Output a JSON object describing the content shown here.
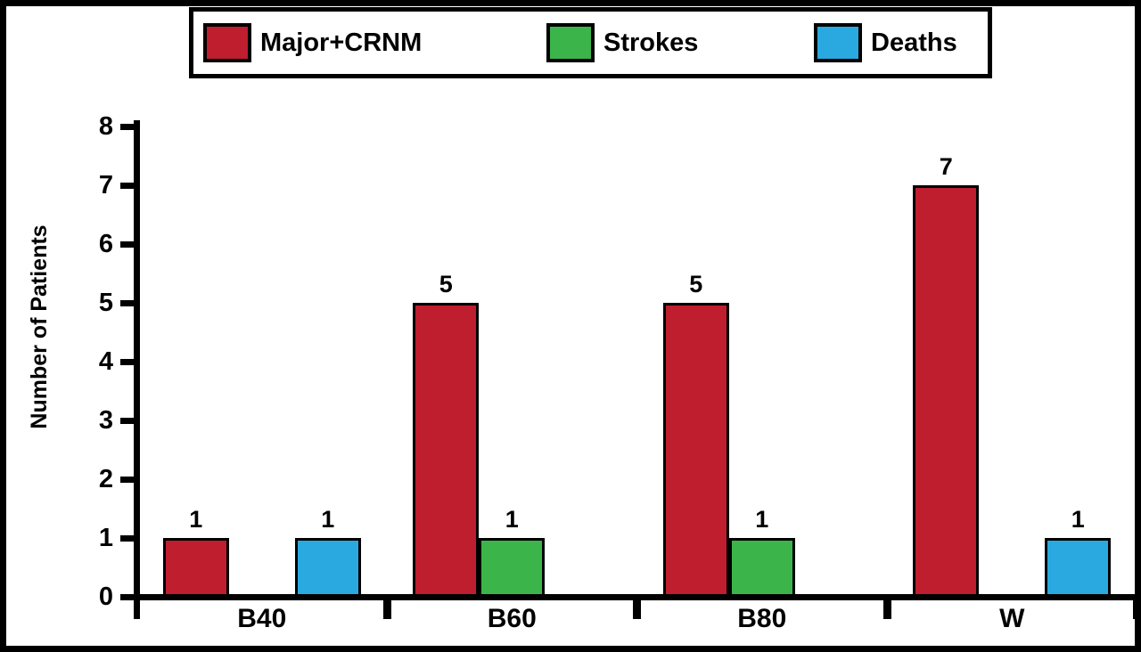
{
  "figure": {
    "background": "#ffffff",
    "border_color": "#000000"
  },
  "chart_data": {
    "type": "bar",
    "title": "",
    "xlabel": "",
    "ylabel": "Number of Patients",
    "categories": [
      "B40",
      "B60",
      "B80",
      "W"
    ],
    "series": [
      {
        "name": "Major+CRNM",
        "color": "#be1e2d",
        "values": [
          1,
          5,
          5,
          7
        ]
      },
      {
        "name": "Strokes",
        "color": "#3bb54a",
        "values": [
          null,
          1,
          1,
          null
        ]
      },
      {
        "name": "Deaths",
        "color": "#29a9e0",
        "values": [
          1,
          null,
          null,
          1
        ]
      }
    ],
    "ylim": [
      0,
      8
    ],
    "yticks": [
      0,
      1,
      2,
      3,
      4,
      5,
      6,
      7,
      8
    ],
    "bar_value_labels": [
      "1",
      "5",
      "5",
      "7",
      "1",
      "1",
      "1",
      "1"
    ],
    "grid": false,
    "legend_position": "top"
  }
}
